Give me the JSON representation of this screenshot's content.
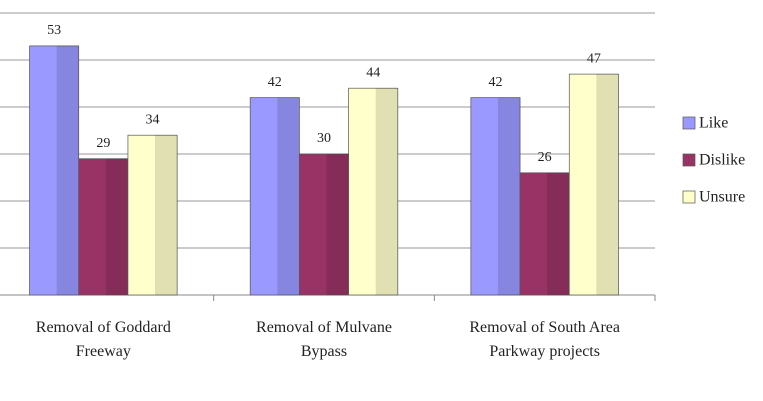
{
  "chart_data": {
    "type": "bar",
    "categories": [
      "Removal of Goddard Freeway",
      "Removal of Mulvane Bypass",
      "Removal of South Area Parkway projects"
    ],
    "series": [
      {
        "name": "Like",
        "color": "#9999ff",
        "values": [
          53,
          42,
          42
        ]
      },
      {
        "name": "Dislike",
        "color": "#993366",
        "values": [
          29,
          30,
          26
        ]
      },
      {
        "name": "Unsure",
        "color": "#ffffcc",
        "values": [
          34,
          44,
          47
        ]
      }
    ],
    "ylim": [
      0,
      60
    ],
    "yticks": [
      0,
      10,
      20,
      30,
      40,
      50,
      60
    ],
    "grid": true,
    "legend": "right"
  }
}
